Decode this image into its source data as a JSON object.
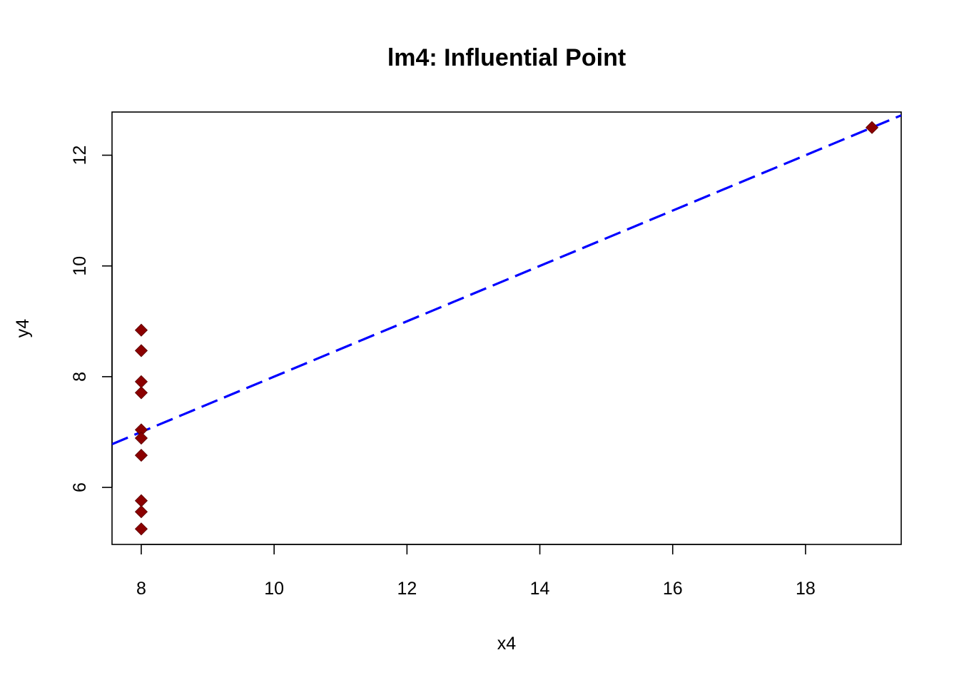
{
  "chart_data": {
    "type": "scatter",
    "title": "lm4: Influential Point",
    "xlabel": "x4",
    "ylabel": "y4",
    "xlim": [
      7.56,
      19.44
    ],
    "ylim": [
      4.97,
      12.78
    ],
    "x_ticks": [
      8,
      10,
      12,
      14,
      16,
      18
    ],
    "y_ticks": [
      6,
      8,
      10,
      12
    ],
    "grid": false,
    "series": [
      {
        "marker": "diamond",
        "color": "#8B0000",
        "x": [
          8,
          8,
          8,
          8,
          8,
          8,
          8,
          19,
          8,
          8,
          8
        ],
        "y": [
          6.58,
          5.76,
          7.71,
          8.84,
          8.47,
          7.04,
          5.25,
          12.5,
          5.56,
          7.91,
          6.89
        ]
      }
    ],
    "regression_line": {
      "style": "dashed",
      "color": "#0000FF",
      "intercept": 3.0017,
      "slope": 0.4999
    }
  }
}
